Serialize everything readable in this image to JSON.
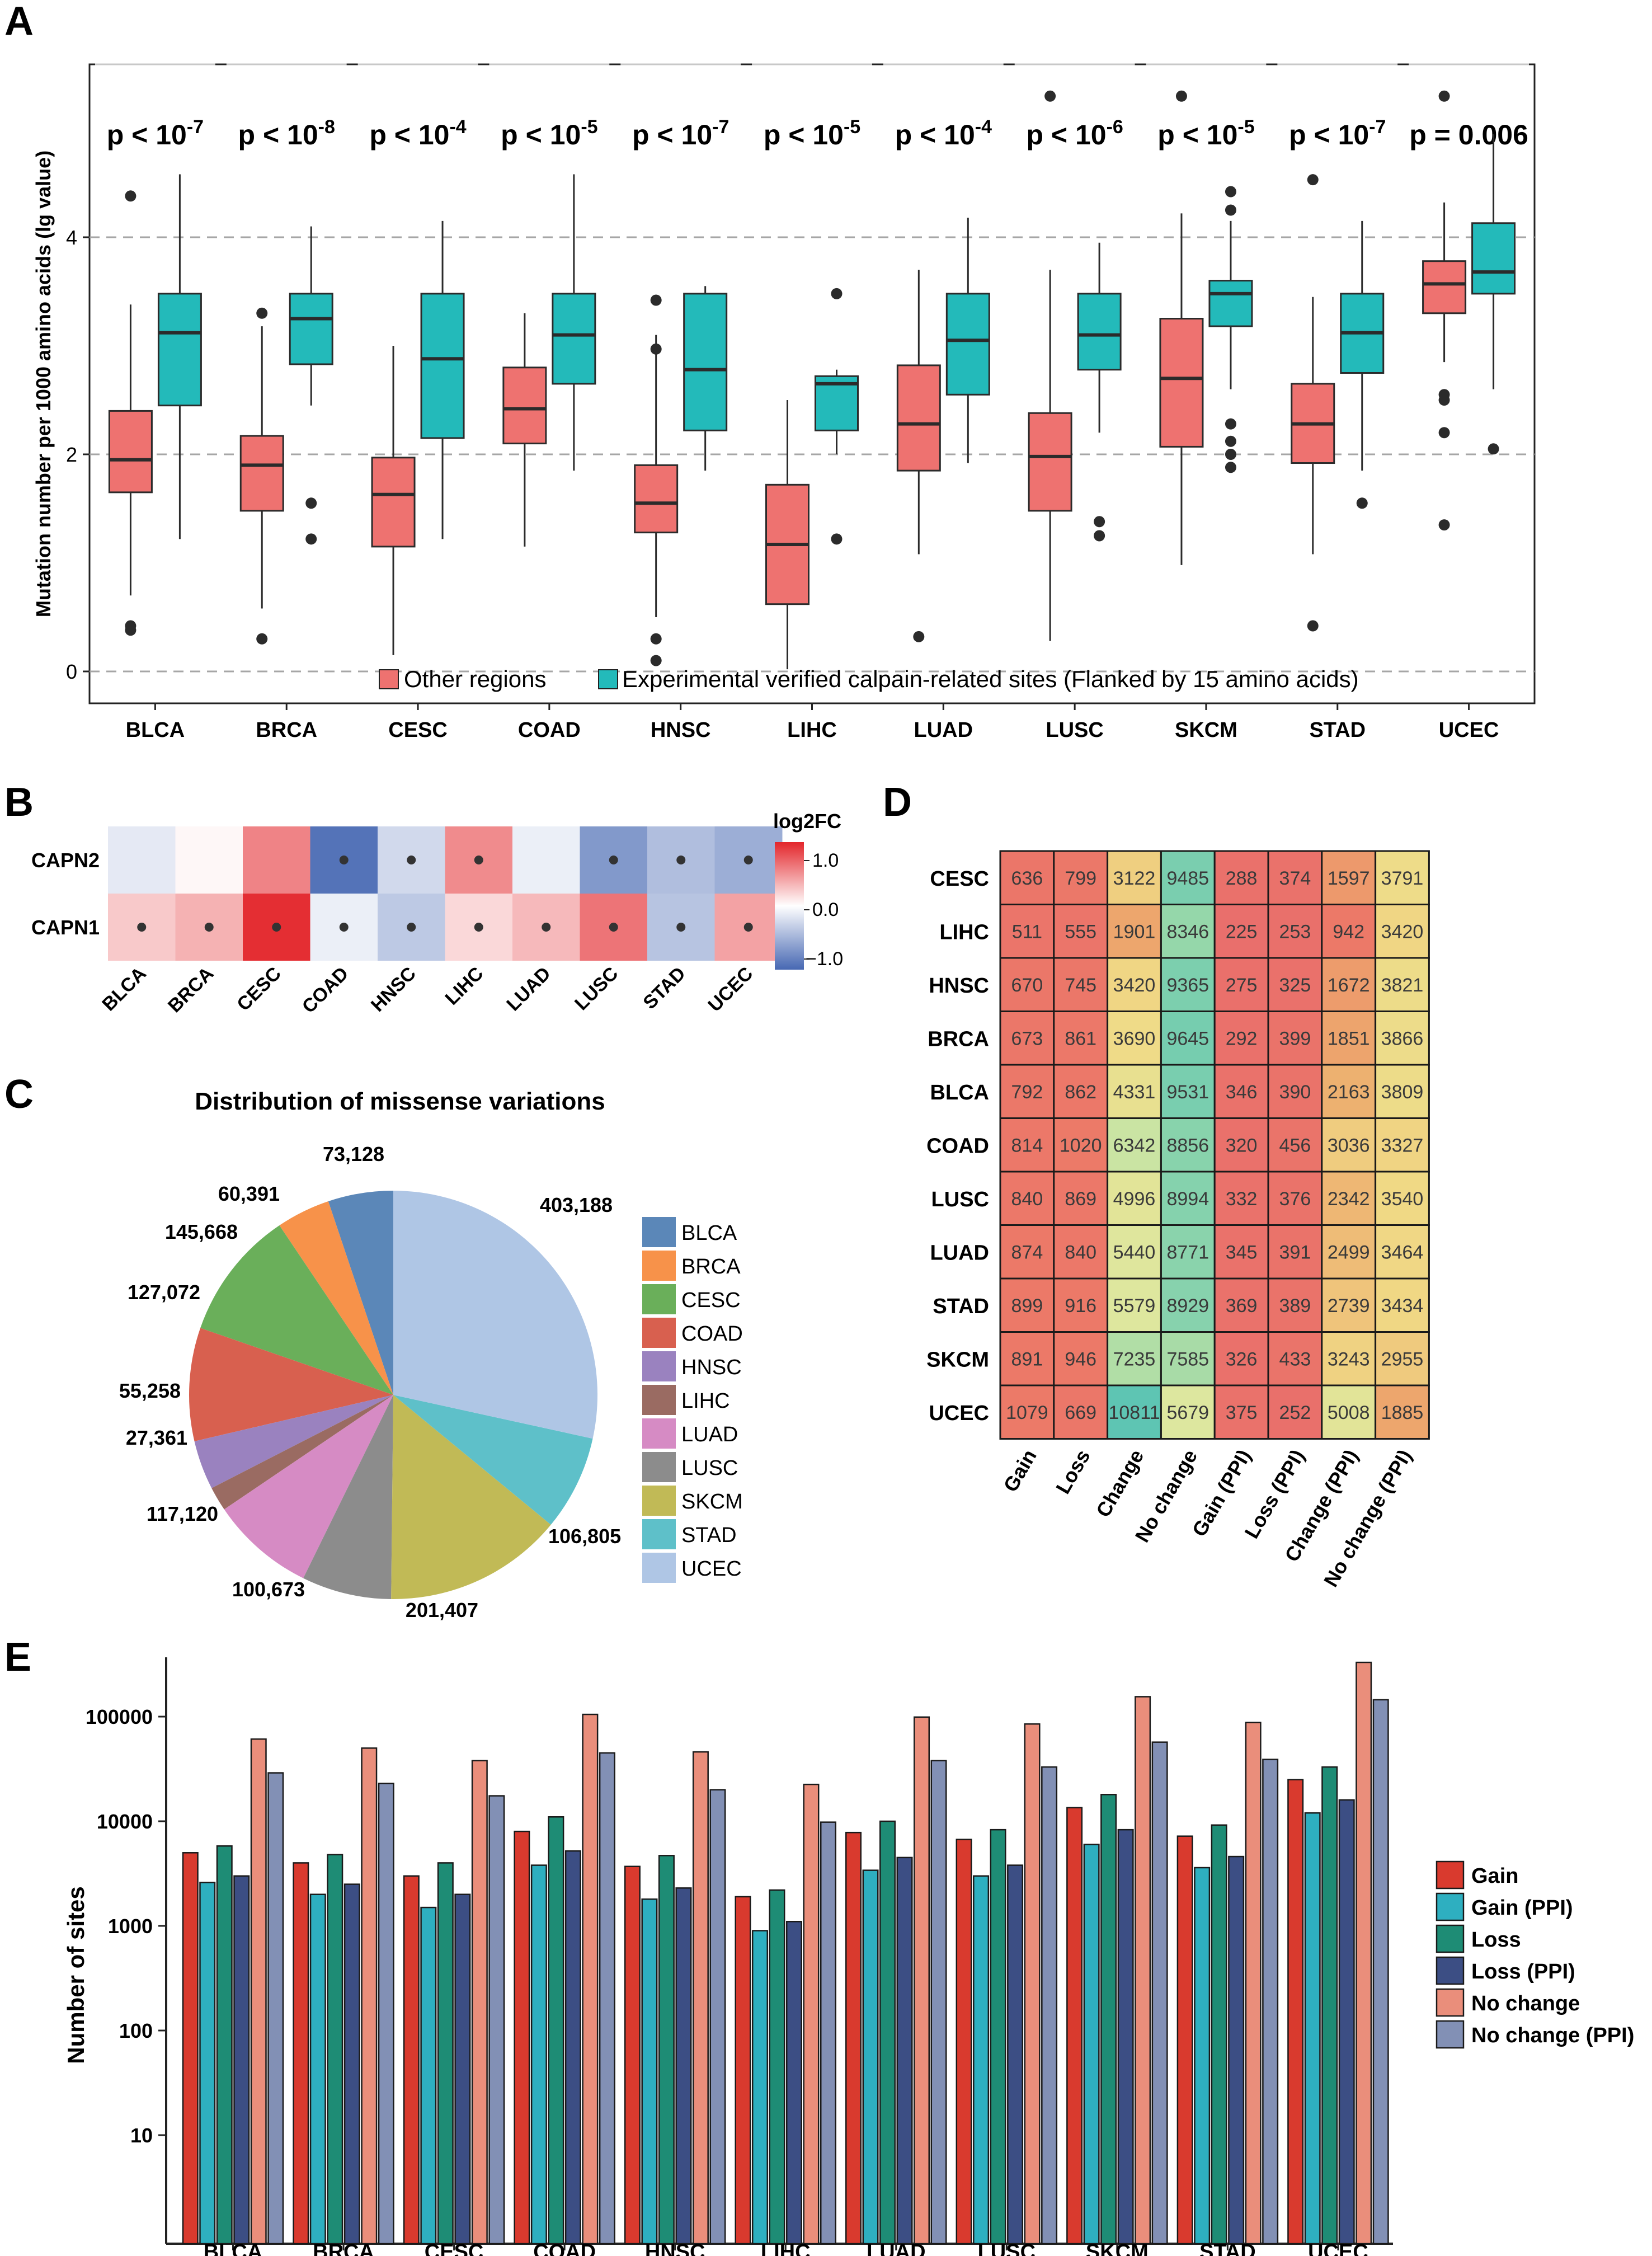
{
  "figure": {
    "type": "multi-panel chart",
    "panel_labels": [
      "A",
      "B",
      "C",
      "D",
      "E"
    ]
  },
  "chart_data": [
    {
      "panel": "A",
      "type": "box",
      "ylabel": "Mutation number per 1000 amino acids (lg value)",
      "ylim": [
        0,
        5.3
      ],
      "yticks": [
        "0",
        "2",
        "4"
      ],
      "grid_dashed_at": [
        0,
        2,
        4
      ],
      "categories": [
        "BLCA",
        "BRCA",
        "CESC",
        "COAD",
        "HNSC",
        "LIHC",
        "LUAD",
        "LUSC",
        "SKCM",
        "STAD",
        "UCEC"
      ],
      "pvalues": [
        {
          "pre": "p < 10",
          "sup": "-7"
        },
        {
          "pre": "p < 10",
          "sup": "-8"
        },
        {
          "pre": "p < 10",
          "sup": "-4"
        },
        {
          "pre": "p < 10",
          "sup": "-5"
        },
        {
          "pre": "p < 10",
          "sup": "-7"
        },
        {
          "pre": "p < 10",
          "sup": "-5"
        },
        {
          "pre": "p < 10",
          "sup": "-4"
        },
        {
          "pre": "p < 10",
          "sup": "-6"
        },
        {
          "pre": "p < 10",
          "sup": "-5"
        },
        {
          "pre": "p < 10",
          "sup": "-7"
        },
        {
          "pre": "p = 0.006",
          "sup": ""
        }
      ],
      "legend": [
        "Other regions",
        "Experimental verified calpain-related sites (Flanked by 15 amino acids)"
      ],
      "series": [
        {
          "name": "Other regions",
          "color": "#EE7270",
          "boxes": [
            {
              "min": 0.7,
              "q1": 1.65,
              "med": 1.95,
              "q3": 2.4,
              "max": 3.38,
              "out": [
                0.38,
                0.42,
                4.38
              ]
            },
            {
              "min": 0.58,
              "q1": 1.48,
              "med": 1.9,
              "q3": 2.17,
              "max": 3.18,
              "out": [
                0.3,
                3.3
              ]
            },
            {
              "min": 0.15,
              "q1": 1.15,
              "med": 1.63,
              "q3": 1.97,
              "max": 3.0,
              "out": []
            },
            {
              "min": 1.15,
              "q1": 2.1,
              "med": 2.42,
              "q3": 2.8,
              "max": 3.3,
              "out": []
            },
            {
              "min": 0.5,
              "q1": 1.28,
              "med": 1.55,
              "q3": 1.9,
              "max": 3.1,
              "out": [
                0.1,
                0.3,
                2.97,
                3.42
              ]
            },
            {
              "min": 0.02,
              "q1": 0.62,
              "med": 1.17,
              "q3": 1.72,
              "max": 2.5,
              "out": []
            },
            {
              "min": 1.08,
              "q1": 1.85,
              "med": 2.28,
              "q3": 2.82,
              "max": 3.7,
              "out": [
                0.32
              ]
            },
            {
              "min": 0.28,
              "q1": 1.48,
              "med": 1.98,
              "q3": 2.38,
              "max": 3.7,
              "out": [
                5.3
              ]
            },
            {
              "min": 0.98,
              "q1": 2.07,
              "med": 2.7,
              "q3": 3.25,
              "max": 4.22,
              "out": [
                5.3
              ]
            },
            {
              "min": 1.08,
              "q1": 1.92,
              "med": 2.28,
              "q3": 2.65,
              "max": 3.45,
              "out": [
                0.42,
                4.53
              ]
            },
            {
              "min": 2.85,
              "q1": 3.3,
              "med": 3.57,
              "q3": 3.78,
              "max": 4.32,
              "out": [
                1.35,
                2.2,
                2.5,
                2.55,
                5.3
              ]
            }
          ]
        },
        {
          "name": "Experimental verified calpain-related sites (Flanked by 15 amino acids)",
          "color": "#23BABA",
          "boxes": [
            {
              "min": 1.22,
              "q1": 2.45,
              "med": 3.12,
              "q3": 3.48,
              "max": 4.58,
              "out": []
            },
            {
              "min": 2.45,
              "q1": 2.83,
              "med": 3.25,
              "q3": 3.48,
              "max": 4.1,
              "out": [
                1.22,
                1.55
              ]
            },
            {
              "min": 1.22,
              "q1": 2.15,
              "med": 2.88,
              "q3": 3.48,
              "max": 4.15,
              "out": []
            },
            {
              "min": 1.85,
              "q1": 2.65,
              "med": 3.1,
              "q3": 3.48,
              "max": 4.58,
              "out": []
            },
            {
              "min": 1.85,
              "q1": 2.22,
              "med": 2.78,
              "q3": 3.48,
              "max": 3.55,
              "out": []
            },
            {
              "min": 2.0,
              "q1": 2.22,
              "med": 2.65,
              "q3": 2.72,
              "max": 2.78,
              "out": [
                1.22,
                3.48
              ]
            },
            {
              "min": 1.92,
              "q1": 2.55,
              "med": 3.05,
              "q3": 3.48,
              "max": 4.18,
              "out": []
            },
            {
              "min": 2.2,
              "q1": 2.78,
              "med": 3.1,
              "q3": 3.48,
              "max": 3.95,
              "out": [
                1.25,
                1.38
              ]
            },
            {
              "min": 2.6,
              "q1": 3.18,
              "med": 3.48,
              "q3": 3.6,
              "max": 4.15,
              "out": [
                1.88,
                2.0,
                2.12,
                2.28,
                4.25,
                4.42
              ]
            },
            {
              "min": 1.85,
              "q1": 2.75,
              "med": 3.12,
              "q3": 3.48,
              "max": 4.15,
              "out": [
                1.55
              ]
            },
            {
              "min": 2.6,
              "q1": 3.48,
              "med": 3.68,
              "q3": 4.13,
              "max": 4.95,
              "out": [
                2.05
              ]
            }
          ]
        }
      ]
    },
    {
      "panel": "B",
      "type": "heatmap",
      "legend_title": "log2FC",
      "legend_ticks": [
        "1.0",
        "0.0",
        "−1.0"
      ],
      "rows": [
        "CAPN2",
        "CAPN1"
      ],
      "columns": [
        "BLCA",
        "BRCA",
        "CESC",
        "COAD",
        "HNSC",
        "LIHC",
        "LUAD",
        "LUSC",
        "STAD",
        "UCEC"
      ],
      "values": [
        [
          -0.2,
          0.05,
          0.8,
          -1.3,
          -0.35,
          0.75,
          -0.15,
          -0.95,
          -0.6,
          -0.75
        ],
        [
          0.35,
          0.5,
          1.35,
          -0.15,
          -0.5,
          0.25,
          0.45,
          0.9,
          -0.55,
          0.6
        ]
      ],
      "significance_dots": [
        [
          false,
          false,
          false,
          true,
          true,
          true,
          false,
          true,
          true,
          true
        ],
        [
          true,
          true,
          true,
          true,
          true,
          true,
          true,
          true,
          true,
          true
        ]
      ]
    },
    {
      "panel": "C",
      "type": "pie",
      "title": "Distribution of missense variations",
      "categories": [
        "BLCA",
        "BRCA",
        "CESC",
        "COAD",
        "HNSC",
        "LIHC",
        "LUAD",
        "LUSC",
        "SKCM",
        "STAD",
        "UCEC"
      ],
      "values": [
        73128,
        60391,
        145668,
        127072,
        55258,
        27361,
        117120,
        100673,
        201407,
        106805,
        403188
      ],
      "labels": [
        "73,128",
        "60,391",
        "145,668",
        "127,072",
        "55,258",
        "27,361",
        "117,120",
        "100,673",
        "201,407",
        "106,805",
        "403,188"
      ],
      "colors": [
        "#5B87B8",
        "#F7924A",
        "#6AAF5A",
        "#D8604F",
        "#9A82BF",
        "#9A6B62",
        "#D68BC4",
        "#8C8C8C",
        "#C1BA56",
        "#5EC0C9",
        "#AFC6E5"
      ]
    },
    {
      "panel": "D",
      "type": "table",
      "rows": [
        "CESC",
        "LIHC",
        "HNSC",
        "BRCA",
        "BLCA",
        "COAD",
        "LUSC",
        "LUAD",
        "STAD",
        "SKCM",
        "UCEC"
      ],
      "columns": [
        "Gain",
        "Loss",
        "Change",
        "No change",
        "Gain (PPI)",
        "Loss (PPI)",
        "Change (PPI)",
        "No change (PPI)"
      ],
      "values": [
        [
          636,
          799,
          3122,
          9485,
          288,
          374,
          1597,
          3791
        ],
        [
          511,
          555,
          1901,
          8346,
          225,
          253,
          942,
          3420
        ],
        [
          670,
          745,
          3420,
          9365,
          275,
          325,
          1672,
          3821
        ],
        [
          673,
          861,
          3690,
          9645,
          292,
          399,
          1851,
          3866
        ],
        [
          792,
          862,
          4331,
          9531,
          346,
          390,
          2163,
          3809
        ],
        [
          814,
          1020,
          6342,
          8856,
          320,
          456,
          3036,
          3327
        ],
        [
          840,
          869,
          4996,
          8994,
          332,
          376,
          2342,
          3540
        ],
        [
          874,
          840,
          5440,
          8771,
          345,
          391,
          2499,
          3464
        ],
        [
          899,
          916,
          5579,
          8929,
          369,
          389,
          2739,
          3434
        ],
        [
          891,
          946,
          7235,
          7585,
          326,
          433,
          3243,
          2955
        ],
        [
          1079,
          669,
          10811,
          5679,
          375,
          252,
          5008,
          1885
        ]
      ]
    },
    {
      "panel": "E",
      "type": "bar",
      "yscale": "log",
      "ylabel": "Number of sites",
      "ylim": [
        1,
        350000
      ],
      "yticks": [
        "10",
        "100",
        "1000",
        "10000",
        "100000"
      ],
      "categories": [
        "BLCA",
        "BRCA",
        "CESC",
        "COAD",
        "HNSC",
        "LIHC",
        "LUAD",
        "LUSC",
        "SKCM",
        "STAD",
        "UCEC"
      ],
      "series": [
        {
          "name": "Gain",
          "color": "#D93A2E",
          "values": [
            5000,
            4000,
            3000,
            8000,
            3700,
            1900,
            7800,
            6700,
            13500,
            7200,
            25000
          ]
        },
        {
          "name": "Gain (PPI)",
          "color": "#2EAFC0",
          "values": [
            2600,
            2000,
            1500,
            3800,
            1800,
            900,
            3400,
            3000,
            6000,
            3600,
            12000
          ]
        },
        {
          "name": "Loss",
          "color": "#1E8C75",
          "values": [
            5800,
            4800,
            4000,
            11000,
            4700,
            2200,
            10000,
            8300,
            18000,
            9200,
            33000
          ]
        },
        {
          "name": "Loss (PPI)",
          "color": "#3C4E84",
          "values": [
            3000,
            2500,
            2000,
            5200,
            2300,
            1100,
            4500,
            3800,
            8300,
            4600,
            16000
          ]
        },
        {
          "name": "No change",
          "color": "#EA8E7B",
          "values": [
            61000,
            50000,
            38000,
            105000,
            46000,
            22500,
            99000,
            85000,
            155000,
            88000,
            330000
          ]
        },
        {
          "name": "No change (PPI)",
          "color": "#8290B5",
          "values": [
            29000,
            23000,
            17500,
            45000,
            20000,
            9800,
            38000,
            33000,
            57000,
            39000,
            145000
          ]
        }
      ]
    }
  ]
}
